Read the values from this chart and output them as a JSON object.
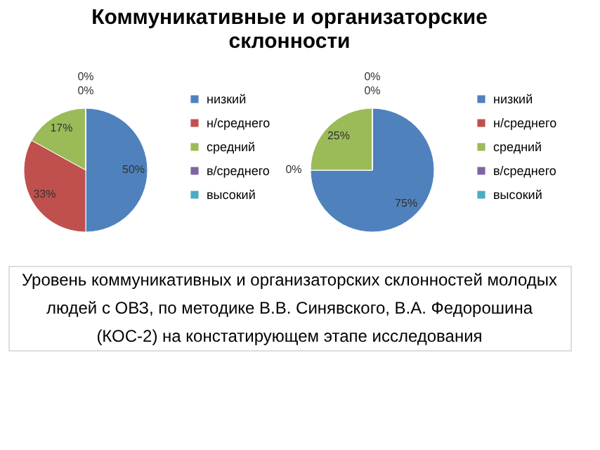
{
  "chart_data": [
    {
      "type": "pie",
      "title": "Коммуникативные и организаторские склонности",
      "annotations": [
        "Уровень коммуникативных и организаторских склонностей молодых людей с ОВЗ, по методике В.В. Синявского, В.А. Федорошина (КОС-2) на констатирующем этапе исследования"
      ],
      "categories": [
        "низкий",
        "н/среднего",
        "средний",
        "в/среднего",
        "высокий"
      ],
      "values": [
        50,
        33,
        17,
        0,
        0
      ],
      "value_labels": [
        "50%",
        "33%",
        "17%",
        "0%",
        "0%"
      ],
      "colors": [
        "#4f81bd",
        "#c0504d",
        "#9bbb59",
        "#8064a2",
        "#4bacc6"
      ],
      "data_labels": true,
      "legend": "right"
    },
    {
      "type": "pie",
      "categories": [
        "низкий",
        "н/среднего",
        "средний",
        "в/среднего",
        "высокий"
      ],
      "values": [
        75,
        0,
        25,
        0,
        0
      ],
      "value_labels": [
        "75%",
        "0%",
        "25%",
        "0%",
        "0%"
      ],
      "colors": [
        "#4f81bd",
        "#c0504d",
        "#9bbb59",
        "#8064a2",
        "#4bacc6"
      ],
      "data_labels": true,
      "legend": "right"
    }
  ]
}
